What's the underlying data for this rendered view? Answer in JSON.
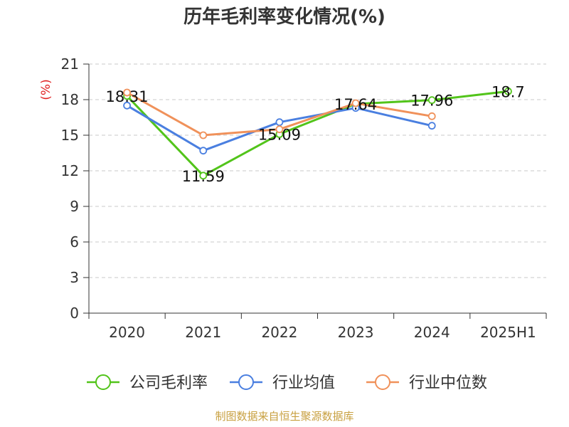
{
  "chart_data": {
    "type": "line",
    "title": "历年毛利率变化情况(%)",
    "ylabel": "(%)",
    "xlabel": "",
    "categories": [
      "2020",
      "2021",
      "2022",
      "2023",
      "2024",
      "2025H1"
    ],
    "ylim": [
      0,
      21
    ],
    "yticks": [
      0,
      3,
      6,
      9,
      12,
      15,
      18,
      21
    ],
    "grid": true,
    "legend_position": "bottom",
    "series": [
      {
        "name": "公司毛利率",
        "color": "#52c41a",
        "values": [
          18.31,
          11.59,
          15.09,
          17.64,
          17.96,
          18.7
        ],
        "labels": [
          "18.31",
          "11.59",
          "15.09",
          "17.64",
          "17.96",
          "18.7"
        ]
      },
      {
        "name": "行业均值",
        "color": "#4a7fe0",
        "values": [
          17.5,
          13.7,
          16.1,
          17.3,
          15.8,
          null
        ]
      },
      {
        "name": "行业中位数",
        "color": "#f0915a",
        "values": [
          18.6,
          15.0,
          15.5,
          17.7,
          16.6,
          null
        ]
      }
    ],
    "source": "制图数据来自恒生聚源数据库"
  }
}
